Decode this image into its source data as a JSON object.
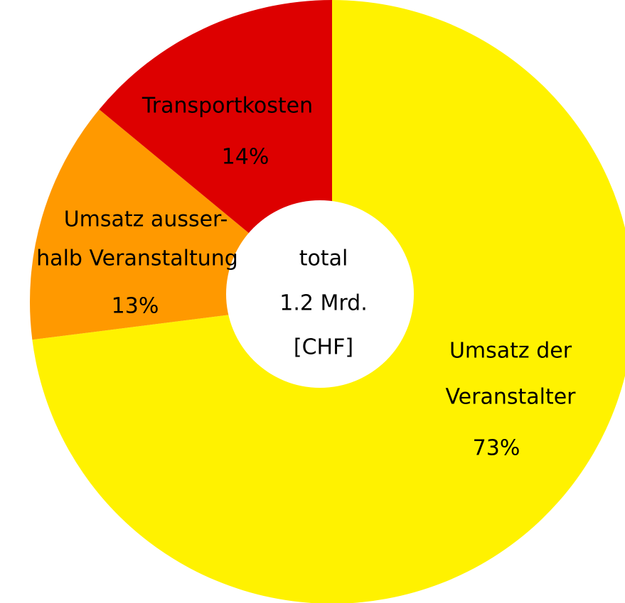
{
  "chart_data": {
    "type": "donut",
    "categories": [
      [
        "Umsatz der",
        "Veranstalter"
      ],
      [
        "Umsatz ausser-",
        "halb Veranstaltung"
      ],
      [
        "Transportkosten"
      ]
    ],
    "values": [
      73,
      13,
      14
    ],
    "value_labels": [
      "73%",
      "13%",
      "14%"
    ],
    "colors": [
      "#fff200",
      "#ff9900",
      "#dd0000"
    ],
    "center_text": [
      "total",
      "1.2 Mrd.",
      "[CHF]"
    ]
  }
}
